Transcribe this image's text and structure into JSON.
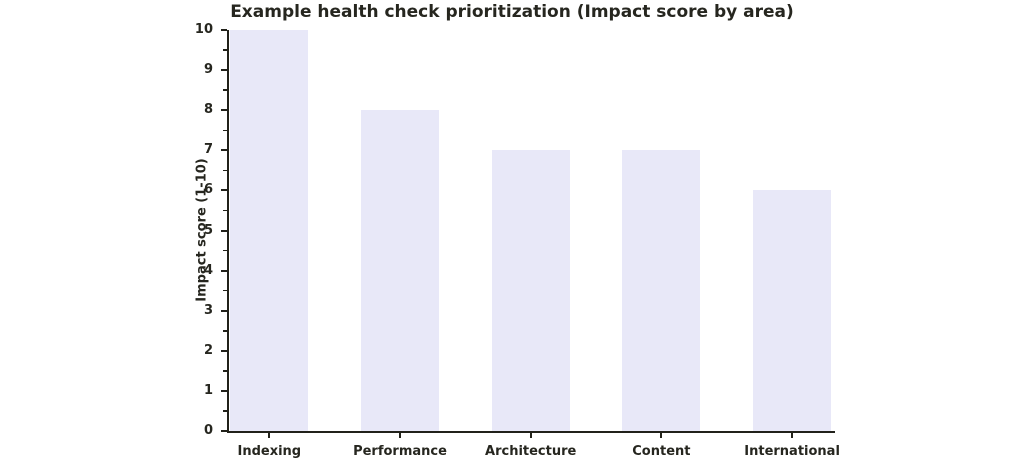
{
  "chart_data": {
    "type": "bar",
    "title": "Example health check prioritization (Impact score by area)",
    "ylabel": "Impact score (1-10)",
    "xlabel": "",
    "categories": [
      "Indexing",
      "Performance",
      "Architecture",
      "Content",
      "International"
    ],
    "values": [
      10,
      8,
      7,
      7,
      6
    ],
    "ylim": [
      0,
      10
    ],
    "yticks": [
      0,
      1,
      2,
      3,
      4,
      5,
      6,
      7,
      8,
      9,
      10
    ],
    "minor_yticks_interval": 0.5,
    "grid": false,
    "legend": null,
    "bar_color": "#e8e8f8",
    "axis_color": "#21211a",
    "text_color": "#26261f",
    "background_color": "#ffffff"
  }
}
